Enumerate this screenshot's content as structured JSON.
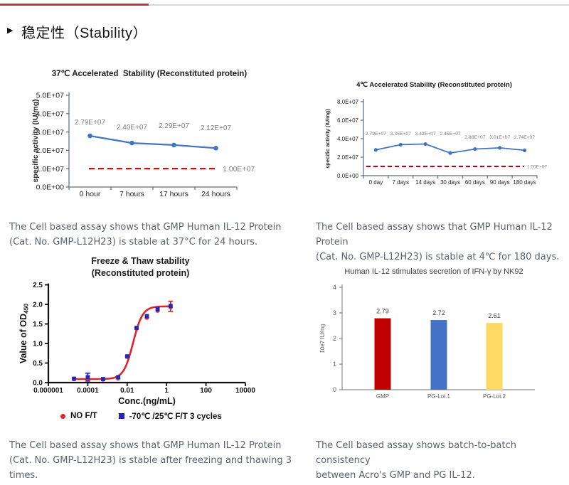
{
  "header": {
    "bullet": "▶",
    "title": "稳定性（Stability）"
  },
  "captions": {
    "c37": [
      "The Cell based assay shows that GMP Human IL-12 Protein",
      "(Cat. No. GMP-L12H23) is stable at 37°C for 24 hours."
    ],
    "c4": [
      "The Cell based assay shows that GMP Human IL-12 Protein",
      "(Cat. No. GMP-L12H23) is stable at 4℃ for 180 days."
    ],
    "cft": [
      "The Cell based assay shows that GMP Human IL-12 Protein",
      "(Cat. No. GMP-L12H23) is stable after freezing and thawing 3",
      "times."
    ],
    "cbatch": [
      "The Cell based assay shows batch-to-batch consistency",
      "between Acro's GMP and PG IL-12."
    ]
  },
  "chart_data": [
    {
      "type": "line",
      "title": "37℃ Accelerated  Stability (Reconstituted protein)",
      "ylabel": "specific activity (IU/mg)",
      "categories": [
        "0 hour",
        "7 hours",
        "17 hours",
        "24 hours"
      ],
      "values": [
        27900000,
        24000000,
        22900000,
        21200000
      ],
      "point_labels": [
        "2.79E+07",
        "2.40E+07",
        "2.29E+07",
        "2.12E+07"
      ],
      "ylim": [
        0,
        50000000
      ],
      "yticks": [
        {
          "v": 50000000,
          "label": "5.0E+07"
        },
        {
          "v": 40000000,
          "label": "4.0E+07"
        },
        {
          "v": 30000000,
          "label": "3.0E+07"
        },
        {
          "v": 20000000,
          "label": "2.0E+07"
        },
        {
          "v": 10000000,
          "label": "1.0E+07"
        },
        {
          "v": 0,
          "label": "0.0E+00"
        }
      ],
      "ref_line": {
        "v": 10000000,
        "label": "1.00E+07",
        "color": "#c00000"
      },
      "line_color": "#4472c4"
    },
    {
      "type": "line",
      "title": "4℃ Accelerated Stability (Reconstituted protein)",
      "ylabel": "specific activity (IU/mg)",
      "categories": [
        "0 day",
        "7 days",
        "14 days",
        "30 days",
        "60 days",
        "90 days",
        "180 days"
      ],
      "values": [
        27900000,
        33500000,
        34200000,
        24500000,
        28800000,
        30100000,
        27400000
      ],
      "point_labels": [
        "2.79E+07",
        "3.35E+07",
        "3.42E+07",
        "2.45E+07",
        "2.88E+07",
        "3.01E+07",
        "2.74E+07"
      ],
      "ylim": [
        0,
        80000000
      ],
      "yticks": [
        {
          "v": 80000000,
          "label": "8.0E+07"
        },
        {
          "v": 60000000,
          "label": "6.0E+07"
        },
        {
          "v": 40000000,
          "label": "4.0E+07"
        },
        {
          "v": 20000000,
          "label": "2.0E+07"
        },
        {
          "v": 0,
          "label": "0.0E+00"
        }
      ],
      "ref_line": {
        "v": 10000000,
        "label": "1.00E+07",
        "color": "#c00000"
      },
      "line_color": "#4472c4"
    },
    {
      "type": "scatter_log",
      "title_lines": [
        "Freeze & Thaw stability",
        "(Reconstituted protein)"
      ],
      "ylabel_main": "Value of OD",
      "ylabel_sub": "450",
      "xlabel": "Conc.(ng/mL)",
      "ylim": [
        0,
        2.5
      ],
      "yticks": [
        {
          "v": 0,
          "label": "0.0"
        },
        {
          "v": 0.5,
          "label": "0.5"
        },
        {
          "v": 1,
          "label": "1.0"
        },
        {
          "v": 1.5,
          "label": "1.5"
        },
        {
          "v": 2,
          "label": "2.0"
        },
        {
          "v": 2.5,
          "label": "2.5"
        }
      ],
      "xticks": [
        {
          "v": 1e-06,
          "label": "0.000001"
        },
        {
          "v": 0.0001,
          "label": "0.0001"
        },
        {
          "v": 0.01,
          "label": "0.01"
        },
        {
          "v": 1,
          "label": "1"
        },
        {
          "v": 100,
          "label": "100"
        },
        {
          "v": 10000,
          "label": "10000"
        }
      ],
      "series": [
        {
          "name": "NO F/T",
          "marker": "circle",
          "color": "#e0242b",
          "points": [
            [
              2e-05,
              0.09
            ],
            [
              0.0001,
              0.1
            ],
            [
              0.0006,
              0.08
            ],
            [
              0.0035,
              0.11
            ],
            [
              0.01,
              0.66
            ],
            [
              0.03,
              1.38
            ],
            [
              0.1,
              1.66
            ],
            [
              0.35,
              1.84
            ],
            [
              1.6,
              1.93
            ]
          ]
        },
        {
          "name": "-70℃ /25℃ F/T 3 cycles",
          "marker": "square",
          "color": "#2626bd",
          "points": [
            [
              2e-05,
              0.1
            ],
            [
              0.0001,
              0.14
            ],
            [
              0.0006,
              0.09
            ],
            [
              0.0035,
              0.14
            ],
            [
              0.01,
              0.67
            ],
            [
              0.03,
              1.4
            ],
            [
              0.1,
              1.7
            ],
            [
              0.35,
              1.88
            ],
            [
              1.6,
              1.96
            ]
          ]
        }
      ],
      "fit": {
        "bottom": 0.09,
        "top": 1.95,
        "ec50": 0.02,
        "hill": 1.8,
        "range": [
          2e-05,
          1.6
        ],
        "color": "#e0242b"
      },
      "error_bars": [
        {
          "x": 0.0001,
          "y": 0.14,
          "e": 0.1,
          "color": "#2626bd"
        },
        {
          "x": 1.6,
          "y": 1.95,
          "e": 0.13,
          "color": "#e0242b"
        }
      ]
    },
    {
      "type": "bar",
      "title": "Human IL-12 stimulates secretion of IFN-γ by NK92",
      "ylabel": "10e7 IU/mg",
      "categories": [
        "GMP",
        "PG-Lot.1",
        "PG-Lot.2"
      ],
      "values": [
        2.79,
        2.72,
        2.61
      ],
      "bar_labels": [
        "2.79",
        "2.72",
        "2.61"
      ],
      "colors": [
        "#c00000",
        "#4472c4",
        "#ffd966"
      ],
      "ylim": [
        0,
        4
      ],
      "yticks": [
        {
          "v": 0,
          "label": "0"
        },
        {
          "v": 1,
          "label": "1"
        },
        {
          "v": 2,
          "label": "2"
        },
        {
          "v": 3,
          "label": "3"
        },
        {
          "v": 4,
          "label": "4"
        }
      ]
    }
  ]
}
